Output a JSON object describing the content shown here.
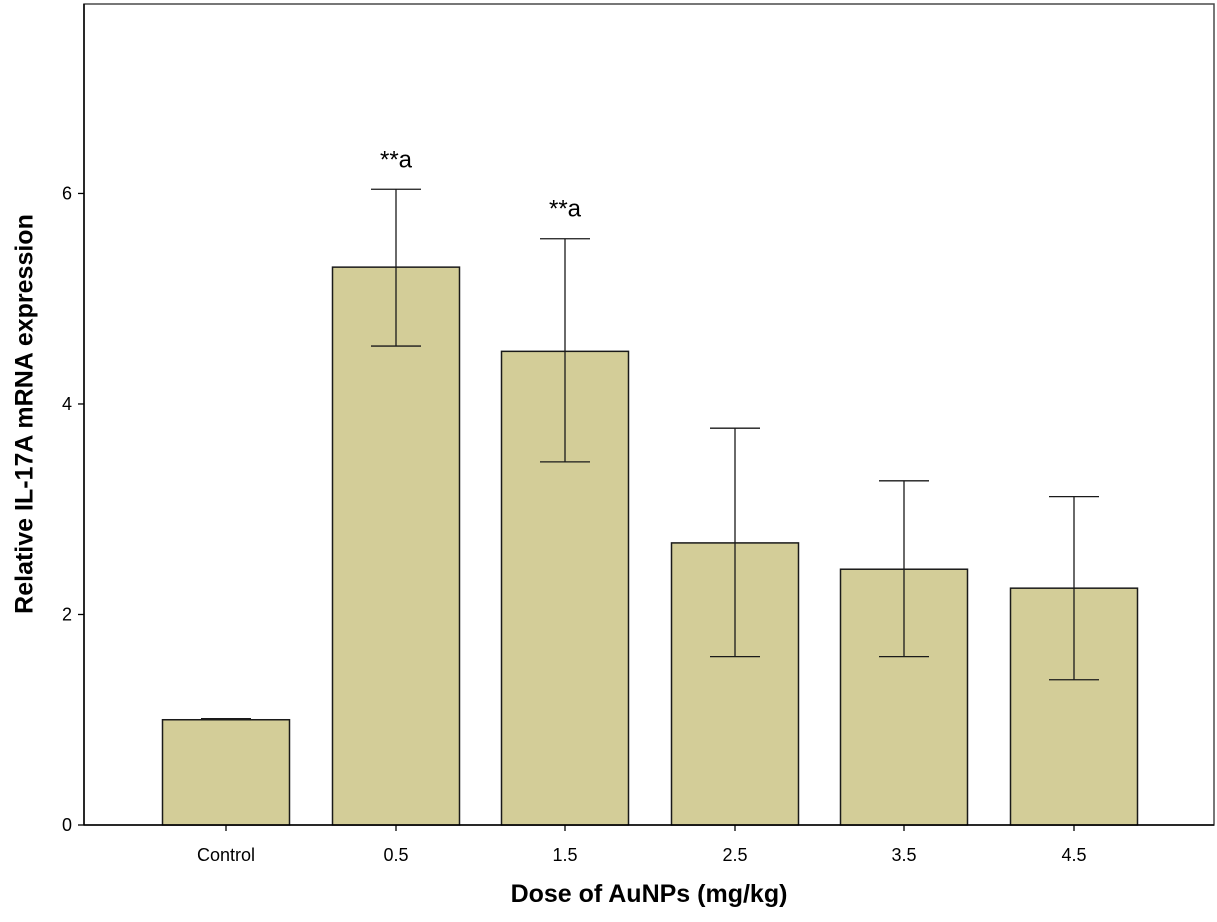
{
  "chart_data": {
    "type": "bar",
    "xlabel": "Dose of AuNPs (mg/kg)",
    "ylabel": "Relative IL-17A mRNA expression",
    "categories": [
      "Control",
      "0.5",
      "1.5",
      "2.5",
      "3.5",
      "4.5"
    ],
    "values": [
      1.0,
      5.3,
      4.5,
      2.68,
      2.43,
      2.25
    ],
    "error_low": [
      1.0,
      4.55,
      3.45,
      1.6,
      1.6,
      1.38
    ],
    "error_high": [
      1.01,
      6.04,
      5.57,
      3.77,
      3.27,
      3.12
    ],
    "annotations": [
      "",
      "**a",
      "**a",
      "",
      "",
      ""
    ],
    "yticks": [
      "0",
      "2",
      "4",
      "6"
    ],
    "ylim": [
      0,
      7.8
    ],
    "grid": false,
    "colors": {
      "bar_fill": "#d3cd98",
      "bar_stroke": "#1a1a1a",
      "axis": "#000000"
    }
  }
}
